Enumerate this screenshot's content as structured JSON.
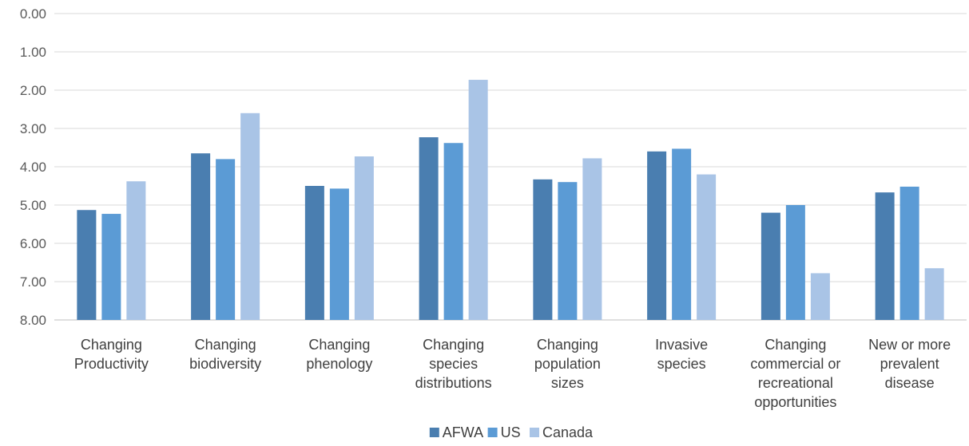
{
  "chart_data": {
    "type": "bar",
    "orientation": "vertical",
    "y_axis_inverted": true,
    "categories": [
      [
        "Changing",
        "Productivity"
      ],
      [
        "Changing",
        "biodiversity"
      ],
      [
        "Changing",
        "phenology"
      ],
      [
        "Changing",
        "species",
        "distributions"
      ],
      [
        "Changing",
        "population",
        "sizes"
      ],
      [
        "Invasive",
        "species"
      ],
      [
        "Changing",
        "commercial or",
        "recreational",
        "opportunities"
      ],
      [
        "New or more",
        "prevalent",
        "disease"
      ]
    ],
    "series": [
      {
        "name": "AFWA",
        "color": "#4a7eb0",
        "values": [
          5.13,
          3.65,
          4.5,
          3.23,
          4.33,
          3.6,
          5.2,
          4.67
        ]
      },
      {
        "name": "US",
        "color": "#5b9bd5",
        "values": [
          5.23,
          3.8,
          4.57,
          3.38,
          4.4,
          3.53,
          5.0,
          4.52
        ]
      },
      {
        "name": "Canada",
        "color": "#a9c4e6",
        "values": [
          4.38,
          2.6,
          3.73,
          1.73,
          3.78,
          4.2,
          6.78,
          6.65
        ]
      }
    ],
    "y_ticks": [
      "0.00",
      "1.00",
      "2.00",
      "3.00",
      "4.00",
      "5.00",
      "6.00",
      "7.00",
      "8.00"
    ],
    "ylim": [
      0,
      8
    ],
    "grid": true,
    "legend_position": "bottom",
    "title": "",
    "xlabel": "",
    "ylabel": ""
  }
}
